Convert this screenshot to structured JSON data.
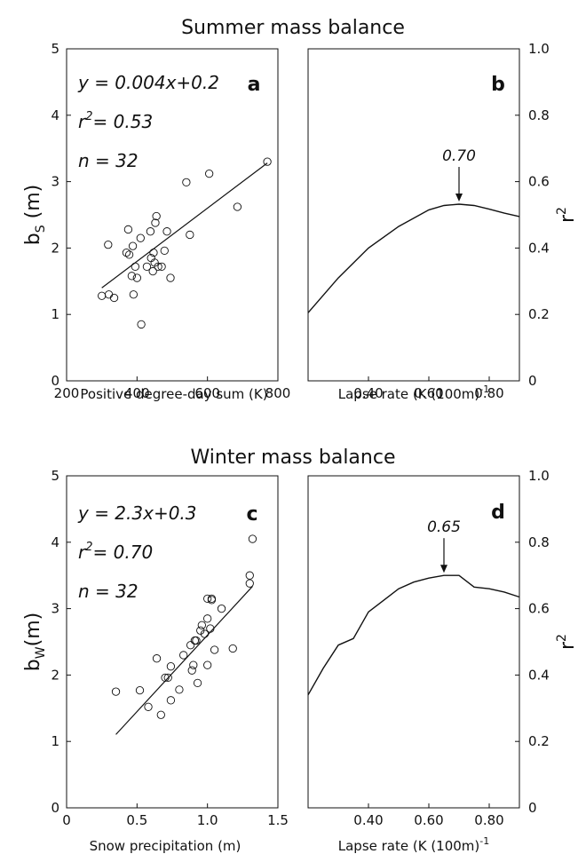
{
  "titles": {
    "top": "Summer mass balance",
    "bottom": "Winter mass balance"
  },
  "panels": {
    "a": {
      "letter": "a",
      "eq": "y = 0.004x+0.2",
      "r2_label": "r",
      "r2_sup": "2",
      "r2_value": "= 0.53",
      "n": "n = 32",
      "xlabel": "Positive degree-day sum (K)",
      "ylabel_main": "b",
      "ylabel_sub": "S",
      "ylabel_unit": " (m)",
      "xticks": [
        "200",
        "400",
        "600",
        "800"
      ],
      "yticks": [
        "0",
        "1",
        "2",
        "3",
        "4",
        "5"
      ]
    },
    "b": {
      "letter": "b",
      "peak_label": "0.70",
      "xlabel": "Lapse rate (K (100m)",
      "xlabel_sup": "-1",
      "ylabel": "r",
      "ylabel_sup": "2",
      "xticks": [
        "0.40",
        "0.60",
        "0.80"
      ],
      "yticks": [
        "0",
        "0.2",
        "0.4",
        "0.6",
        "0.8",
        "1.0"
      ]
    },
    "c": {
      "letter": "c",
      "eq": "y = 2.3x+0.3",
      "r2_label": "r",
      "r2_sup": "2",
      "r2_value": "= 0.70",
      "n": "n = 32",
      "xlabel": "Snow precipitation (m)",
      "ylabel_main": "b",
      "ylabel_sub": "W",
      "ylabel_unit": "(m)",
      "xticks": [
        "0",
        "0.5",
        "1.0",
        "1.5"
      ],
      "yticks": [
        "0",
        "1",
        "2",
        "3",
        "4",
        "5"
      ]
    },
    "d": {
      "letter": "d",
      "peak_label": "0.65",
      "xlabel": "Lapse rate (K (100m)",
      "xlabel_sup": "-1",
      "ylabel": "r",
      "ylabel_sup": "2",
      "xticks": [
        "0.40",
        "0.60",
        "0.80"
      ],
      "yticks": [
        "0",
        "0.2",
        "0.4",
        "0.6",
        "0.8",
        "1.0"
      ]
    }
  },
  "chart_data": [
    {
      "panel": "a",
      "type": "scatter",
      "xlim": [
        200,
        800
      ],
      "ylim": [
        0,
        5
      ],
      "xlabel": "Positive degree-day sum (K)",
      "ylabel": "bS (m)",
      "points": [
        [
          300,
          1.28
        ],
        [
          318,
          2.05
        ],
        [
          320,
          1.3
        ],
        [
          335,
          1.25
        ],
        [
          370,
          1.93
        ],
        [
          375,
          2.28
        ],
        [
          378,
          1.9
        ],
        [
          385,
          1.58
        ],
        [
          388,
          2.03
        ],
        [
          390,
          1.3
        ],
        [
          395,
          1.72
        ],
        [
          400,
          1.55
        ],
        [
          410,
          2.15
        ],
        [
          412,
          0.85
        ],
        [
          428,
          1.72
        ],
        [
          438,
          2.25
        ],
        [
          440,
          1.85
        ],
        [
          445,
          1.65
        ],
        [
          447,
          1.93
        ],
        [
          450,
          1.78
        ],
        [
          452,
          2.38
        ],
        [
          455,
          2.48
        ],
        [
          460,
          1.72
        ],
        [
          470,
          1.72
        ],
        [
          478,
          1.96
        ],
        [
          485,
          2.25
        ],
        [
          495,
          1.55
        ],
        [
          540,
          2.99
        ],
        [
          550,
          2.2
        ],
        [
          605,
          3.12
        ],
        [
          685,
          2.62
        ],
        [
          770,
          3.3
        ]
      ],
      "fit": {
        "slope": 0.004,
        "intercept": 0.2,
        "x_range": [
          300,
          770
        ]
      }
    },
    {
      "panel": "b",
      "type": "line",
      "xlim": [
        0.2,
        0.9
      ],
      "ylim": [
        0,
        1.0
      ],
      "xlabel": "Lapse rate (K (100m)-1",
      "ylabel": "r2",
      "x": [
        0.2,
        0.3,
        0.4,
        0.5,
        0.6,
        0.65,
        0.7,
        0.75,
        0.8,
        0.85,
        0.9
      ],
      "y": [
        0.205,
        0.31,
        0.4,
        0.465,
        0.515,
        0.528,
        0.532,
        0.528,
        0.517,
        0.505,
        0.495
      ],
      "peak": {
        "x": 0.7,
        "y": 0.532,
        "label": "0.70"
      }
    },
    {
      "panel": "c",
      "type": "scatter",
      "xlim": [
        0,
        1.5
      ],
      "ylim": [
        0,
        5
      ],
      "xlabel": "Snow precipitation (m)",
      "ylabel": "bW(m)",
      "points": [
        [
          0.35,
          1.75
        ],
        [
          0.52,
          1.77
        ],
        [
          0.58,
          1.52
        ],
        [
          0.64,
          2.25
        ],
        [
          0.67,
          1.4
        ],
        [
          0.7,
          1.96
        ],
        [
          0.72,
          1.96
        ],
        [
          0.74,
          2.13
        ],
        [
          0.74,
          1.62
        ],
        [
          0.8,
          1.78
        ],
        [
          0.83,
          2.3
        ],
        [
          0.88,
          2.45
        ],
        [
          0.89,
          2.07
        ],
        [
          0.9,
          2.15
        ],
        [
          0.91,
          2.52
        ],
        [
          0.92,
          2.52
        ],
        [
          0.93,
          1.88
        ],
        [
          0.95,
          2.67
        ],
        [
          0.96,
          2.75
        ],
        [
          0.98,
          2.62
        ],
        [
          1.0,
          2.85
        ],
        [
          1.0,
          2.15
        ],
        [
          1.0,
          3.15
        ],
        [
          1.03,
          3.15
        ],
        [
          1.03,
          3.13
        ],
        [
          1.05,
          2.38
        ],
        [
          1.1,
          3.0
        ],
        [
          1.18,
          2.4
        ],
        [
          1.3,
          3.5
        ],
        [
          1.3,
          3.38
        ],
        [
          1.32,
          4.05
        ],
        [
          1.02,
          2.7
        ]
      ],
      "fit": {
        "slope": 2.3,
        "intercept": 0.3,
        "x_range": [
          0.35,
          1.32
        ]
      }
    },
    {
      "panel": "d",
      "type": "line",
      "xlim": [
        0.2,
        0.9
      ],
      "ylim": [
        0,
        1.0
      ],
      "xlabel": "Lapse rate (K (100m)-1",
      "ylabel": "r2",
      "x": [
        0.2,
        0.25,
        0.3,
        0.35,
        0.4,
        0.45,
        0.5,
        0.55,
        0.6,
        0.65,
        0.7,
        0.75,
        0.8,
        0.85,
        0.9
      ],
      "y": [
        0.34,
        0.42,
        0.49,
        0.51,
        0.59,
        0.625,
        0.66,
        0.68,
        0.692,
        0.7,
        0.7,
        0.665,
        0.66,
        0.65,
        0.635
      ],
      "peak": {
        "x": 0.65,
        "y": 0.7,
        "label": "0.65"
      }
    }
  ]
}
